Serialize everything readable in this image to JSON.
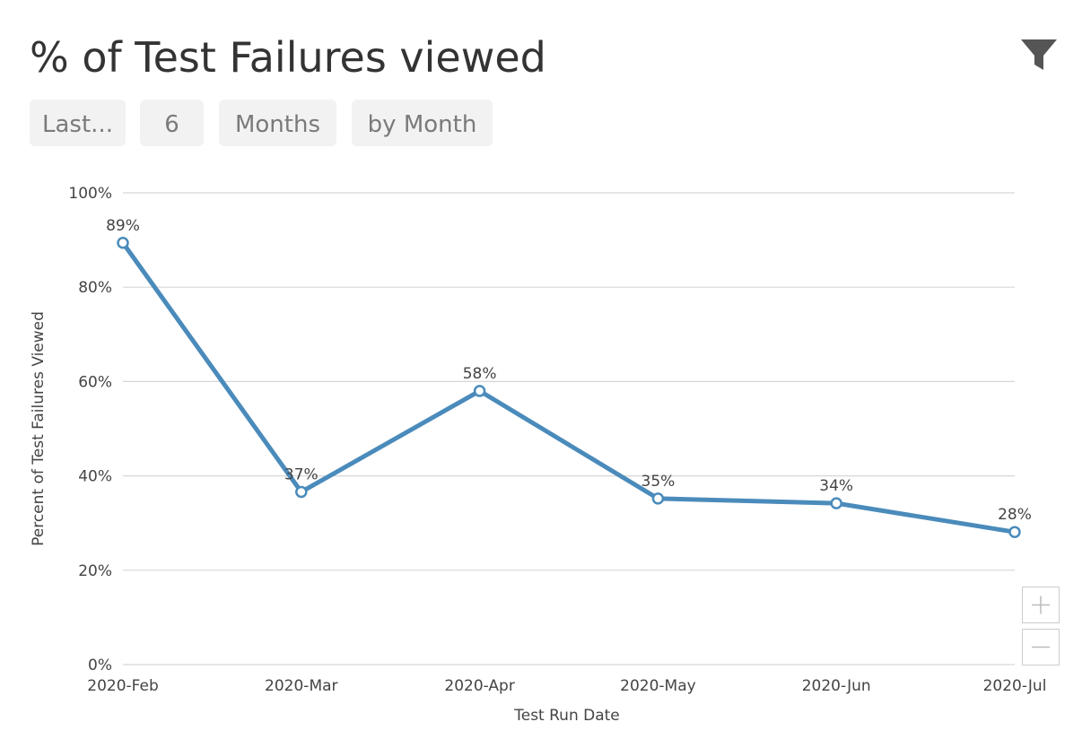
{
  "controls": [
    "Last...",
    "6",
    "Months",
    "by Month"
  ],
  "chart_data": {
    "type": "line",
    "title": "% of Test Failures viewed",
    "x_label": "Test Run Date",
    "y_label": "Percent of Test Failures Viewed",
    "categories": [
      "2020-Feb",
      "2020-Mar",
      "2020-Apr",
      "2020-May",
      "2020-Jun",
      "2020-Jul"
    ],
    "series": [
      {
        "name": "Percent of Test Failures Viewed",
        "color": "#4a8bbb",
        "values": [
          89.4,
          36.6,
          58.0,
          35.2,
          34.2,
          28.1
        ],
        "value_labels": [
          "89%",
          "37%",
          "58%",
          "35%",
          "34%",
          "28%"
        ]
      }
    ],
    "ylim": [
      0,
      100
    ],
    "yticks": [
      {
        "value": 0,
        "label": "0%"
      },
      {
        "value": 20,
        "label": "20%"
      },
      {
        "value": 40,
        "label": "40%"
      },
      {
        "value": 60,
        "label": "60%"
      },
      {
        "value": 80,
        "label": "80%"
      },
      {
        "value": 100,
        "label": "100%"
      }
    ],
    "grid": true
  }
}
